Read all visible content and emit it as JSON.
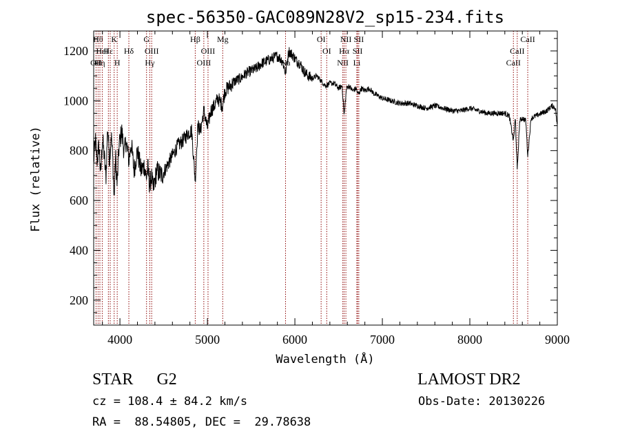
{
  "chart_data": {
    "type": "line",
    "title": "spec-56350-GAC089N28V2_sp15-234.fits",
    "xlabel": "Wavelength (Å)",
    "ylabel": "Flux (relative)",
    "xlim": [
      3700,
      9000
    ],
    "ylim": [
      100,
      1280
    ],
    "xticks": [
      4000,
      5000,
      6000,
      7000,
      8000,
      9000
    ],
    "yticks": [
      200,
      400,
      600,
      800,
      1000,
      1200
    ],
    "grid": false,
    "line_color": "#000000",
    "marker_color": "#8b0000",
    "series": [
      {
        "x": [
          3700,
          3720,
          3740,
          3760,
          3780,
          3800,
          3820,
          3840,
          3860,
          3880,
          3900,
          3920,
          3933,
          3950,
          3968,
          3990,
          4020,
          4050,
          4070,
          4102,
          4130,
          4160,
          4200,
          4240,
          4280,
          4300,
          4320,
          4340,
          4360,
          4380,
          4420,
          4480,
          4540,
          4600,
          4660,
          4720,
          4780,
          4820,
          4861,
          4890,
          4920,
          4960,
          5000,
          5040,
          5080,
          5120,
          5172,
          5200,
          5260,
          5320,
          5380,
          5440,
          5500,
          5560,
          5620,
          5680,
          5740,
          5800,
          5860,
          5893,
          5930,
          5980,
          6020,
          6060,
          6100,
          6150,
          6200,
          6250,
          6300,
          6350,
          6400,
          6450,
          6500,
          6540,
          6563,
          6590,
          6620,
          6660,
          6700,
          6717,
          6731,
          6760,
          6800,
          6850,
          6900,
          6950,
          7000,
          7100,
          7200,
          7300,
          7400,
          7500,
          7600,
          7700,
          7800,
          7900,
          8000,
          8100,
          8200,
          8300,
          8400,
          8450,
          8498,
          8520,
          8542,
          8570,
          8600,
          8640,
          8662,
          8700,
          8760,
          8820,
          8880,
          8940,
          8980,
          9000
        ],
        "y": [
          760,
          840,
          760,
          820,
          700,
          850,
          780,
          690,
          900,
          760,
          870,
          750,
          600,
          780,
          660,
          820,
          880,
          790,
          840,
          760,
          830,
          720,
          800,
          720,
          740,
          690,
          730,
          660,
          700,
          640,
          720,
          700,
          740,
          780,
          820,
          840,
          870,
          880,
          680,
          900,
          880,
          960,
          890,
          960,
          980,
          1010,
          980,
          1040,
          1060,
          1080,
          1090,
          1110,
          1120,
          1130,
          1150,
          1160,
          1170,
          1180,
          1160,
          1110,
          1200,
          1180,
          1160,
          1150,
          1120,
          1100,
          1090,
          1100,
          1080,
          1060,
          1070,
          1070,
          1050,
          1060,
          940,
          1050,
          1060,
          1040,
          1050,
          1030,
          1030,
          1050,
          1040,
          1050,
          1030,
          1020,
          1010,
          1000,
          990,
          990,
          980,
          970,
          980,
          970,
          960,
          960,
          970,
          960,
          950,
          950,
          950,
          940,
          840,
          930,
          720,
          920,
          930,
          920,
          780,
          930,
          940,
          950,
          960,
          980,
          970,
          890
        ]
      }
    ],
    "line_markers": [
      {
        "wave": 3727,
        "label": "OII",
        "row": 2
      },
      {
        "wave": 3750,
        "label": "Hθ",
        "row": 0
      },
      {
        "wave": 3771,
        "label": "Hη",
        "row": 2
      },
      {
        "wave": 3798,
        "label": "HeI",
        "row": 1
      },
      {
        "wave": 3868,
        "label": "Hε",
        "row": 1
      },
      {
        "wave": 3889,
        "label": "",
        "row": 0
      },
      {
        "wave": 3934,
        "label": "K",
        "row": 0
      },
      {
        "wave": 3969,
        "label": "H",
        "row": 2
      },
      {
        "wave": 4102,
        "label": "Hδ",
        "row": 1
      },
      {
        "wave": 4304,
        "label": "G",
        "row": 0
      },
      {
        "wave": 4341,
        "label": "Hγ",
        "row": 2
      },
      {
        "wave": 4363,
        "label": "OIII",
        "row": 1
      },
      {
        "wave": 4861,
        "label": "Hβ",
        "row": 0
      },
      {
        "wave": 4959,
        "label": "OIII",
        "row": 2
      },
      {
        "wave": 5007,
        "label": "OIII",
        "row": 1
      },
      {
        "wave": 5175,
        "label": "Mg",
        "row": 0
      },
      {
        "wave": 5893,
        "label": "Na",
        "row": 2
      },
      {
        "wave": 6300,
        "label": "OI",
        "row": 0
      },
      {
        "wave": 6364,
        "label": "OI",
        "row": 1
      },
      {
        "wave": 6548,
        "label": "NII",
        "row": 2
      },
      {
        "wave": 6563,
        "label": "Hα",
        "row": 1
      },
      {
        "wave": 6583,
        "label": "NII",
        "row": 0
      },
      {
        "wave": 6708,
        "label": "Li",
        "row": 2
      },
      {
        "wave": 6717,
        "label": "SII",
        "row": 1
      },
      {
        "wave": 6731,
        "label": "SII",
        "row": 0
      },
      {
        "wave": 8498,
        "label": "CaII",
        "row": 2
      },
      {
        "wave": 8542,
        "label": "CaII",
        "row": 1
      },
      {
        "wave": 8662,
        "label": "CaII",
        "row": 0
      }
    ]
  },
  "info": {
    "object_class": "STAR",
    "subclass": "G2",
    "survey": "LAMOST DR2",
    "redshift_text": "cz = 108.4 ± 84.2 km/s",
    "obs_date_text": "Obs-Date: 20130226",
    "radec_text": "RA =  88.54805, DEC =  29.78638"
  }
}
